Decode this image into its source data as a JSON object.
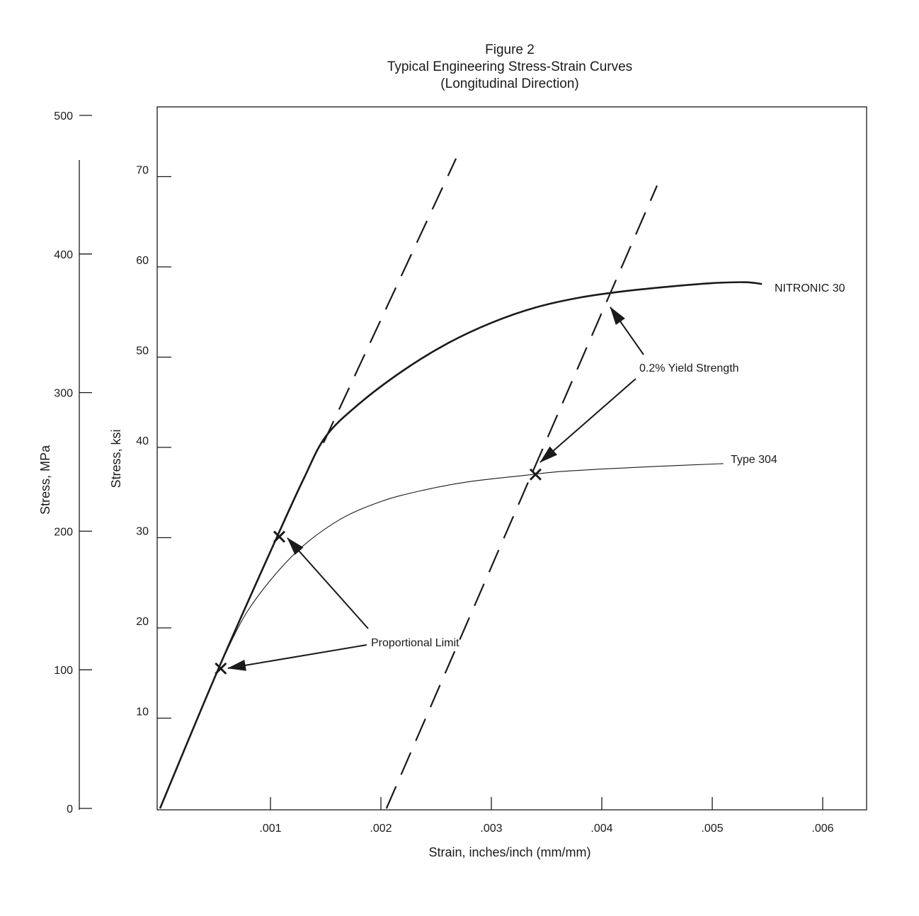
{
  "figure": {
    "title_line1": "Figure 2",
    "title_line2": "Typical Engineering Stress-Strain Curves",
    "title_line3": "(Longitudinal Direction)"
  },
  "chart_data": {
    "type": "line",
    "title": "Typical Engineering Stress-Strain Curves",
    "subtitle": "(Longitudinal Direction)",
    "xlabel": "Strain, inches/inch (mm/mm)",
    "ylabel": "Stress, ksi",
    "ylabel_secondary": "Stress, MPa",
    "xlim": [
      0,
      0.0064
    ],
    "ylim": [
      0,
      78
    ],
    "x_ticks": [
      0.001,
      0.002,
      0.003,
      0.004,
      0.005,
      0.006
    ],
    "x_tick_labels": [
      ".001",
      ".002",
      ".003",
      ".004",
      ".005",
      ".006"
    ],
    "y_ticks": [
      10,
      20,
      30,
      40,
      50,
      60,
      70
    ],
    "y_tick_labels": [
      "10",
      "20",
      "30",
      "40",
      "50",
      "60",
      "70"
    ],
    "y2_ticks": [
      0,
      100,
      200,
      300,
      400,
      500
    ],
    "y2_tick_labels": [
      "0",
      "100",
      "200",
      "300",
      "400",
      "500"
    ],
    "grid": false,
    "series": [
      {
        "name": "NITRONIC 30",
        "style": "solid-heavy",
        "color": "#1a1a1a",
        "points": [
          [
            0,
            0
          ],
          [
            0.00053,
            15.5
          ],
          [
            0.00106,
            30.1
          ],
          [
            0.0013,
            36.5
          ],
          [
            0.0015,
            41.2
          ],
          [
            0.0018,
            44.8
          ],
          [
            0.0022,
            48.5
          ],
          [
            0.0026,
            51.5
          ],
          [
            0.003,
            53.8
          ],
          [
            0.0034,
            55.5
          ],
          [
            0.0038,
            56.6
          ],
          [
            0.0042,
            57.3
          ],
          [
            0.0046,
            57.8
          ],
          [
            0.005,
            58.2
          ],
          [
            0.0053,
            58.3
          ],
          [
            0.00545,
            58.1
          ]
        ]
      },
      {
        "name": "Type 304",
        "style": "solid-thin",
        "color": "#1a1a1a",
        "points": [
          [
            0.00053,
            15.5
          ],
          [
            0.0008,
            22.0
          ],
          [
            0.0012,
            28.0
          ],
          [
            0.0016,
            31.8
          ],
          [
            0.002,
            34.0
          ],
          [
            0.0024,
            35.3
          ],
          [
            0.0028,
            36.2
          ],
          [
            0.0033,
            36.9
          ],
          [
            0.0036,
            37.3
          ],
          [
            0.004,
            37.6
          ],
          [
            0.0045,
            37.9
          ],
          [
            0.0051,
            38.2
          ]
        ]
      },
      {
        "name": "",
        "style": "dashed",
        "color": "#1a1a1a",
        "points": [
          [
            0.00148,
            40.5
          ],
          [
            0.00268,
            72.0
          ]
        ]
      },
      {
        "name": "",
        "style": "dashed",
        "color": "#1a1a1a",
        "points": [
          [
            0.00205,
            0
          ],
          [
            0.0045,
            69.0
          ]
        ]
      }
    ],
    "markers": [
      {
        "series": "NITRONIC 30",
        "kind": "proportional-limit",
        "x": 0.00108,
        "y": 30.1
      },
      {
        "series": "Type 304",
        "kind": "proportional-limit",
        "x": 0.00055,
        "y": 15.5
      },
      {
        "series": "Type 304",
        "kind": "yield-strength",
        "x": 0.0034,
        "y": 37.0
      }
    ],
    "annotations": {
      "proportional_limit": "Proportional Limit",
      "yield_strength": "0.2% Yield Strength",
      "nitronic_label": "NITRONIC 30",
      "type304_label": "Type 304"
    }
  }
}
